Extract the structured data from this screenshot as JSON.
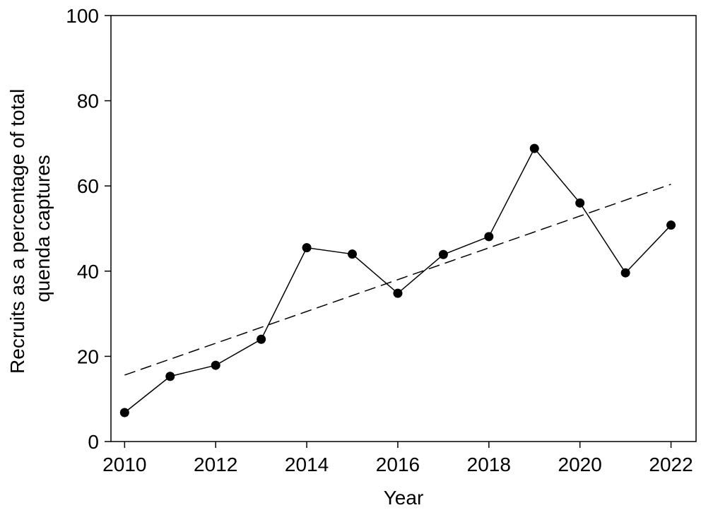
{
  "chart_data": {
    "type": "scatter",
    "title": "",
    "xlabel": "Year",
    "ylabel": [
      "Recruits as a percentage of total",
      "quenda captures"
    ],
    "xlim": [
      2009.7,
      2022.55
    ],
    "ylim": [
      0,
      100
    ],
    "xticks": [
      2010,
      2012,
      2014,
      2016,
      2018,
      2020,
      2022
    ],
    "yticks": [
      0,
      20,
      40,
      60,
      80,
      100
    ],
    "grid": false,
    "legend": "none",
    "series": [
      {
        "style": "line-with-markers",
        "x": [
          2010,
          2011,
          2012,
          2013,
          2014,
          2015,
          2016,
          2017,
          2018,
          2019,
          2020,
          2021,
          2022
        ],
        "y": [
          6.8,
          15.3,
          17.9,
          24.0,
          45.5,
          44.0,
          34.8,
          43.9,
          48.1,
          68.8,
          56.0,
          39.6,
          50.8
        ]
      }
    ],
    "trendline": {
      "style": "dashed",
      "x": [
        2010,
        2022
      ],
      "y": [
        15.6,
        60.4
      ]
    }
  }
}
